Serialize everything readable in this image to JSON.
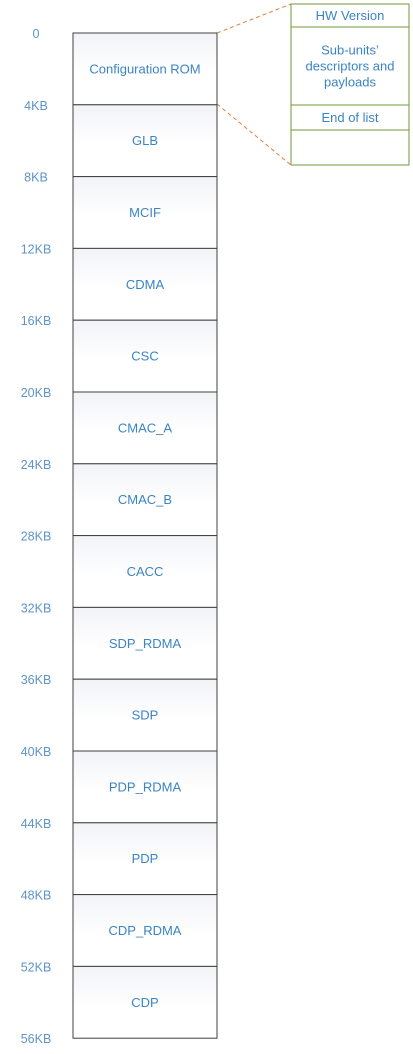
{
  "memory_map": {
    "blocks": [
      {
        "label": "Configuration ROM"
      },
      {
        "label": "GLB"
      },
      {
        "label": "MCIF"
      },
      {
        "label": "CDMA"
      },
      {
        "label": "CSC"
      },
      {
        "label": "CMAC_A"
      },
      {
        "label": "CMAC_B"
      },
      {
        "label": "CACC"
      },
      {
        "label": "SDP_RDMA"
      },
      {
        "label": "SDP"
      },
      {
        "label": "PDP_RDMA"
      },
      {
        "label": "PDP"
      },
      {
        "label": "CDP_RDMA"
      },
      {
        "label": "CDP"
      }
    ],
    "offsets": [
      "0",
      "4KB",
      "8KB",
      "12KB",
      "16KB",
      "20KB",
      "24KB",
      "28KB",
      "32KB",
      "36KB",
      "40KB",
      "44KB",
      "48KB",
      "52KB",
      "56KB"
    ]
  },
  "rom_detail": {
    "entries": [
      {
        "lines": [
          "HW Version"
        ]
      },
      {
        "lines": [
          "Sub-units’",
          "descriptors and",
          "payloads"
        ]
      },
      {
        "lines": [
          "End of list"
        ]
      },
      {
        "lines": []
      }
    ]
  },
  "colors": {
    "block_text": "#3b84c4",
    "offset_text": "#5d94c8",
    "block_border": "#404040",
    "rom_border": "#6f9a3a",
    "connector": "#e07f3a"
  }
}
